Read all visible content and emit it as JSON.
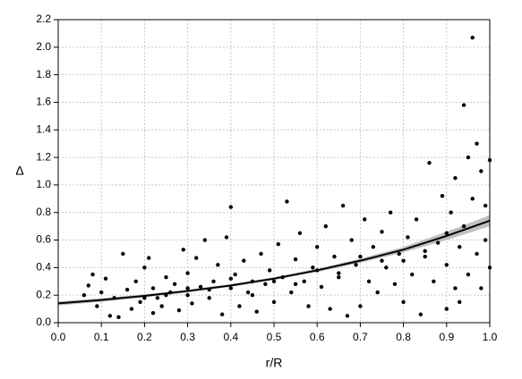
{
  "chart_data": {
    "type": "scatter",
    "x_label": "r/R",
    "y_label": "Δ",
    "xlim": [
      0,
      1
    ],
    "ylim": [
      0,
      2.2
    ],
    "xticks": [
      {
        "value": 0,
        "label": "0.0"
      },
      0.1,
      0.2,
      0.3,
      0.4,
      0.5,
      0.6,
      0.7,
      0.8,
      0.9,
      {
        "value": 1,
        "label": "1.0"
      }
    ],
    "yticks": [
      {
        "value": 0,
        "label": "0.0"
      },
      0.2,
      0.4,
      0.6,
      0.8,
      {
        "value": 1,
        "label": "1.0"
      },
      1.2,
      1.4,
      1.6,
      1.8,
      {
        "value": 2,
        "label": "2.0"
      },
      2.2
    ],
    "grid": true,
    "points": {
      "color": "#000000",
      "x": [
        0.06,
        0.07,
        0.08,
        0.09,
        0.1,
        0.11,
        0.12,
        0.13,
        0.14,
        0.15,
        0.16,
        0.17,
        0.18,
        0.19,
        0.2,
        0.21,
        0.22,
        0.22,
        0.23,
        0.24,
        0.25,
        0.26,
        0.27,
        0.28,
        0.29,
        0.3,
        0.3,
        0.31,
        0.32,
        0.33,
        0.34,
        0.35,
        0.36,
        0.37,
        0.38,
        0.39,
        0.4,
        0.4,
        0.41,
        0.42,
        0.43,
        0.44,
        0.45,
        0.46,
        0.47,
        0.48,
        0.49,
        0.5,
        0.51,
        0.52,
        0.53,
        0.54,
        0.55,
        0.56,
        0.57,
        0.58,
        0.59,
        0.6,
        0.61,
        0.62,
        0.63,
        0.64,
        0.65,
        0.66,
        0.67,
        0.68,
        0.69,
        0.7,
        0.71,
        0.72,
        0.73,
        0.74,
        0.75,
        0.76,
        0.77,
        0.78,
        0.79,
        0.8,
        0.81,
        0.82,
        0.83,
        0.84,
        0.85,
        0.86,
        0.87,
        0.88,
        0.89,
        0.9,
        0.9,
        0.91,
        0.92,
        0.92,
        0.93,
        0.93,
        0.94,
        0.94,
        0.95,
        0.95,
        0.96,
        0.96,
        0.97,
        0.97,
        0.98,
        0.98,
        0.99,
        0.99,
        1.0,
        1.0,
        0.55,
        0.45,
        0.35,
        0.25,
        0.65,
        0.75,
        0.85,
        0.6,
        0.5,
        0.4,
        0.3,
        0.2,
        0.7,
        0.8,
        0.9
      ],
      "y": [
        0.2,
        0.27,
        0.35,
        0.12,
        0.22,
        0.32,
        0.05,
        0.18,
        0.04,
        0.5,
        0.24,
        0.1,
        0.3,
        0.15,
        0.4,
        0.47,
        0.07,
        0.25,
        0.18,
        0.12,
        0.33,
        0.22,
        0.28,
        0.09,
        0.53,
        0.2,
        0.36,
        0.14,
        0.47,
        0.26,
        0.6,
        0.18,
        0.3,
        0.42,
        0.06,
        0.62,
        0.84,
        0.25,
        0.35,
        0.12,
        0.45,
        0.22,
        0.3,
        0.08,
        0.5,
        0.28,
        0.38,
        0.15,
        0.57,
        0.33,
        0.88,
        0.22,
        0.46,
        0.65,
        0.3,
        0.12,
        0.4,
        0.55,
        0.26,
        0.7,
        0.1,
        0.48,
        0.36,
        0.85,
        0.05,
        0.6,
        0.42,
        0.12,
        0.75,
        0.3,
        0.55,
        0.22,
        0.66,
        0.4,
        0.8,
        0.28,
        0.5,
        0.15,
        0.62,
        0.35,
        0.75,
        0.06,
        0.48,
        1.16,
        0.3,
        0.58,
        0.92,
        0.1,
        0.42,
        0.8,
        0.25,
        1.05,
        0.55,
        0.15,
        1.58,
        0.7,
        1.2,
        0.35,
        2.07,
        0.9,
        1.3,
        0.5,
        1.1,
        0.25,
        0.85,
        0.6,
        1.18,
        0.4,
        0.28,
        0.2,
        0.24,
        0.2,
        0.33,
        0.45,
        0.52,
        0.38,
        0.3,
        0.32,
        0.25,
        0.18,
        0.48,
        0.45,
        0.65
      ]
    },
    "fit": {
      "color": "#000000",
      "band_color": "#b0b0b0",
      "x": [
        0,
        0.1,
        0.2,
        0.3,
        0.4,
        0.5,
        0.6,
        0.7,
        0.8,
        0.9,
        1
      ],
      "y": [
        0.14,
        0.165,
        0.195,
        0.23,
        0.27,
        0.32,
        0.38,
        0.45,
        0.53,
        0.63,
        0.74
      ],
      "lower": [
        0.125,
        0.152,
        0.184,
        0.22,
        0.26,
        0.31,
        0.368,
        0.435,
        0.51,
        0.6,
        0.7
      ],
      "upper": [
        0.155,
        0.178,
        0.206,
        0.24,
        0.28,
        0.33,
        0.392,
        0.465,
        0.55,
        0.66,
        0.78
      ]
    }
  }
}
